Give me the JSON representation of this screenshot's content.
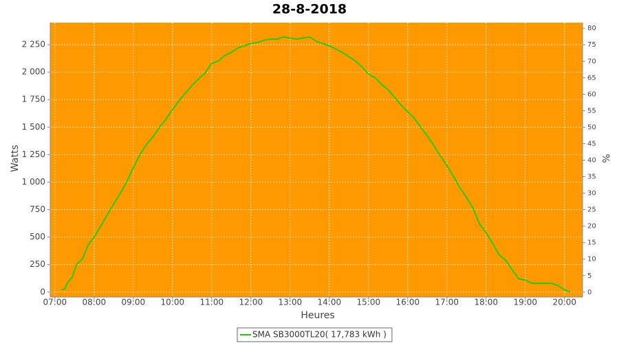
{
  "chart_data": {
    "type": "line",
    "title": "28-8-2018",
    "x_label": "Heures",
    "y_label": "Watts",
    "y2_label": "%",
    "x": [
      7.17,
      7.25,
      7.33,
      7.45,
      7.55,
      7.7,
      7.85,
      8.0,
      8.17,
      8.33,
      8.5,
      8.67,
      8.83,
      9.0,
      9.17,
      9.33,
      9.5,
      9.67,
      9.83,
      10.0,
      10.17,
      10.33,
      10.5,
      10.67,
      10.83,
      11.0,
      11.17,
      11.33,
      11.5,
      11.67,
      11.83,
      12.0,
      12.17,
      12.33,
      12.5,
      12.67,
      12.83,
      13.0,
      13.17,
      13.33,
      13.5,
      13.67,
      13.83,
      14.0,
      14.17,
      14.33,
      14.5,
      14.67,
      14.83,
      15.0,
      15.17,
      15.33,
      15.5,
      15.67,
      15.83,
      16.0,
      16.17,
      16.33,
      16.5,
      16.67,
      16.83,
      17.0,
      17.17,
      17.33,
      17.5,
      17.67,
      17.83,
      18.0,
      18.17,
      18.33,
      18.5,
      18.67,
      18.83,
      19.0,
      19.17,
      19.33,
      19.5,
      19.67,
      19.83,
      20.0,
      20.15
    ],
    "series": [
      {
        "name": "SMA SB3000TL20( 17,783 kWh )",
        "color": "#22cc00",
        "values": [
          20,
          30,
          90,
          140,
          250,
          300,
          430,
          500,
          600,
          700,
          800,
          900,
          1000,
          1130,
          1250,
          1340,
          1410,
          1500,
          1570,
          1660,
          1740,
          1810,
          1880,
          1940,
          1990,
          2080,
          2100,
          2150,
          2180,
          2220,
          2240,
          2260,
          2270,
          2290,
          2300,
          2300,
          2320,
          2310,
          2300,
          2310,
          2320,
          2280,
          2260,
          2240,
          2210,
          2180,
          2140,
          2100,
          2050,
          1980,
          1950,
          1890,
          1840,
          1770,
          1700,
          1640,
          1580,
          1500,
          1420,
          1330,
          1240,
          1150,
          1050,
          950,
          860,
          760,
          620,
          540,
          440,
          340,
          290,
          200,
          120,
          110,
          80,
          80,
          80,
          80,
          60,
          20,
          0
        ]
      }
    ],
    "xlim": [
      6.88,
      20.46
    ],
    "xticks": [
      {
        "value": 7,
        "label": "07:00"
      },
      {
        "value": 8,
        "label": "08:00"
      },
      {
        "value": 9,
        "label": "09:00"
      },
      {
        "value": 10,
        "label": "10:00"
      },
      {
        "value": 11,
        "label": "11:00"
      },
      {
        "value": 12,
        "label": "12:00"
      },
      {
        "value": 13,
        "label": "13:00"
      },
      {
        "value": 14,
        "label": "14:00"
      },
      {
        "value": 15,
        "label": "15:00"
      },
      {
        "value": 16,
        "label": "16:00"
      },
      {
        "value": 17,
        "label": "17:00"
      },
      {
        "value": 18,
        "label": "18:00"
      },
      {
        "value": 19,
        "label": "19:00"
      },
      {
        "value": 20,
        "label": "20:00"
      }
    ],
    "ylim": [
      -45,
      2450
    ],
    "yticks": [
      0,
      250,
      500,
      750,
      {
        "value": 1000,
        "label": "1 000"
      },
      {
        "value": 1250,
        "label": "1 250"
      },
      {
        "value": 1500,
        "label": "1 500"
      },
      {
        "value": 1750,
        "label": "1 750"
      },
      {
        "value": 2000,
        "label": "2 000"
      },
      {
        "value": 2250,
        "label": "2 250"
      }
    ],
    "y2lim": [
      -1.5,
      81.7
    ],
    "y2ticks": [
      0,
      5,
      10,
      15,
      20,
      25,
      30,
      35,
      40,
      45,
      50,
      55,
      60,
      65,
      70,
      75,
      80
    ],
    "grid": true,
    "background": "#ff9900"
  }
}
